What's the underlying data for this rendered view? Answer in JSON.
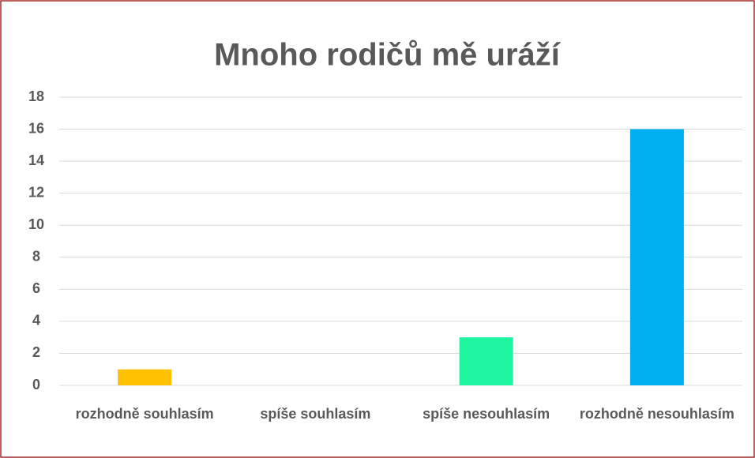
{
  "chart_data": {
    "type": "bar",
    "title": "Mnoho rodičů mě uráží",
    "categories": [
      "rozhodně souhlasím",
      "spíše souhlasím",
      "spíše nesouhlasím",
      "rozhodně nesouhlasím"
    ],
    "values": [
      1,
      0,
      3,
      16
    ],
    "colors": [
      "#ffc000",
      null,
      "#1ef5a0",
      "#00b0f0"
    ],
    "ylim": [
      0,
      18
    ],
    "yticks": [
      0,
      2,
      4,
      6,
      8,
      10,
      12,
      14,
      16,
      18
    ],
    "grid": true
  }
}
